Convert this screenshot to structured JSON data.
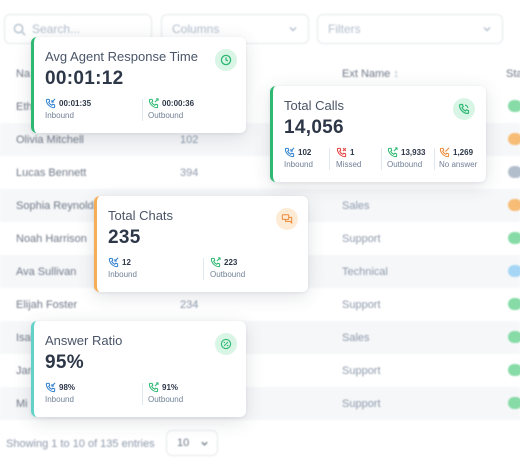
{
  "toolbar": {
    "search_placeholder": "Search...",
    "columns_label": "Columns",
    "filters_label": "Filters"
  },
  "table": {
    "headers": {
      "name": "Na",
      "ext_name": "Ext Name",
      "status": "Sta"
    },
    "rows": [
      {
        "name": "Eth",
        "ext": "",
        "ext_name": ""
      },
      {
        "name": "Olivia Mitchell",
        "ext": "102",
        "ext_name": ""
      },
      {
        "name": "Lucas Bennett",
        "ext": "394",
        "ext_name": ""
      },
      {
        "name": "Sophia Reynolds",
        "ext": "",
        "ext_name": "Sales"
      },
      {
        "name": "Noah Harrison",
        "ext": "",
        "ext_name": "Support"
      },
      {
        "name": "Ava Sullivan",
        "ext": "",
        "ext_name": "Technical"
      },
      {
        "name": "Elijah Foster",
        "ext": "234",
        "ext_name": "Support"
      },
      {
        "name": "Isal",
        "ext": "",
        "ext_name": "Sales"
      },
      {
        "name": "Jam",
        "ext": "",
        "ext_name": "Support"
      },
      {
        "name": "Mi",
        "ext": "",
        "ext_name": "Support"
      }
    ],
    "status_colors": [
      "#68d391",
      "#f6ad55",
      "#a0aec0",
      "#f6ad55",
      "#68d391",
      "#90cdf4",
      "#68d391",
      "#68d391",
      "#68d391",
      "#68d391"
    ]
  },
  "footer": {
    "entries_text": "Showing 1 to 10 of 135 entries",
    "page_size": "10"
  },
  "cards": {
    "avg_response": {
      "title": "Avg Agent Response Time",
      "value": "00:01:12",
      "inbound_value": "00:01:35",
      "inbound_label": "Inbound",
      "outbound_value": "00:00:36",
      "outbound_label": "Outbound"
    },
    "total_calls": {
      "title": "Total Calls",
      "value": "14,056",
      "inbound_value": "102",
      "inbound_label": "Inbound",
      "missed_value": "1",
      "missed_label": "Missed",
      "outbound_value": "13,933",
      "outbound_label": "Outbound",
      "no_answer_value": "1,269",
      "no_answer_label": "No answer"
    },
    "total_chats": {
      "title": "Total Chats",
      "value": "235",
      "inbound_value": "12",
      "inbound_label": "Inbound",
      "outbound_value": "223",
      "outbound_label": "Outbound"
    },
    "answer_ratio": {
      "title": "Answer Ratio",
      "value": "95%",
      "inbound_value": "98%",
      "inbound_label": "Inbound",
      "outbound_value": "91%",
      "outbound_label": "Outbound"
    }
  },
  "colors": {
    "green": "#2eb872",
    "blue": "#3182ce",
    "red": "#e53e3e",
    "orange": "#ed8936",
    "teal": "#63d1c9"
  }
}
